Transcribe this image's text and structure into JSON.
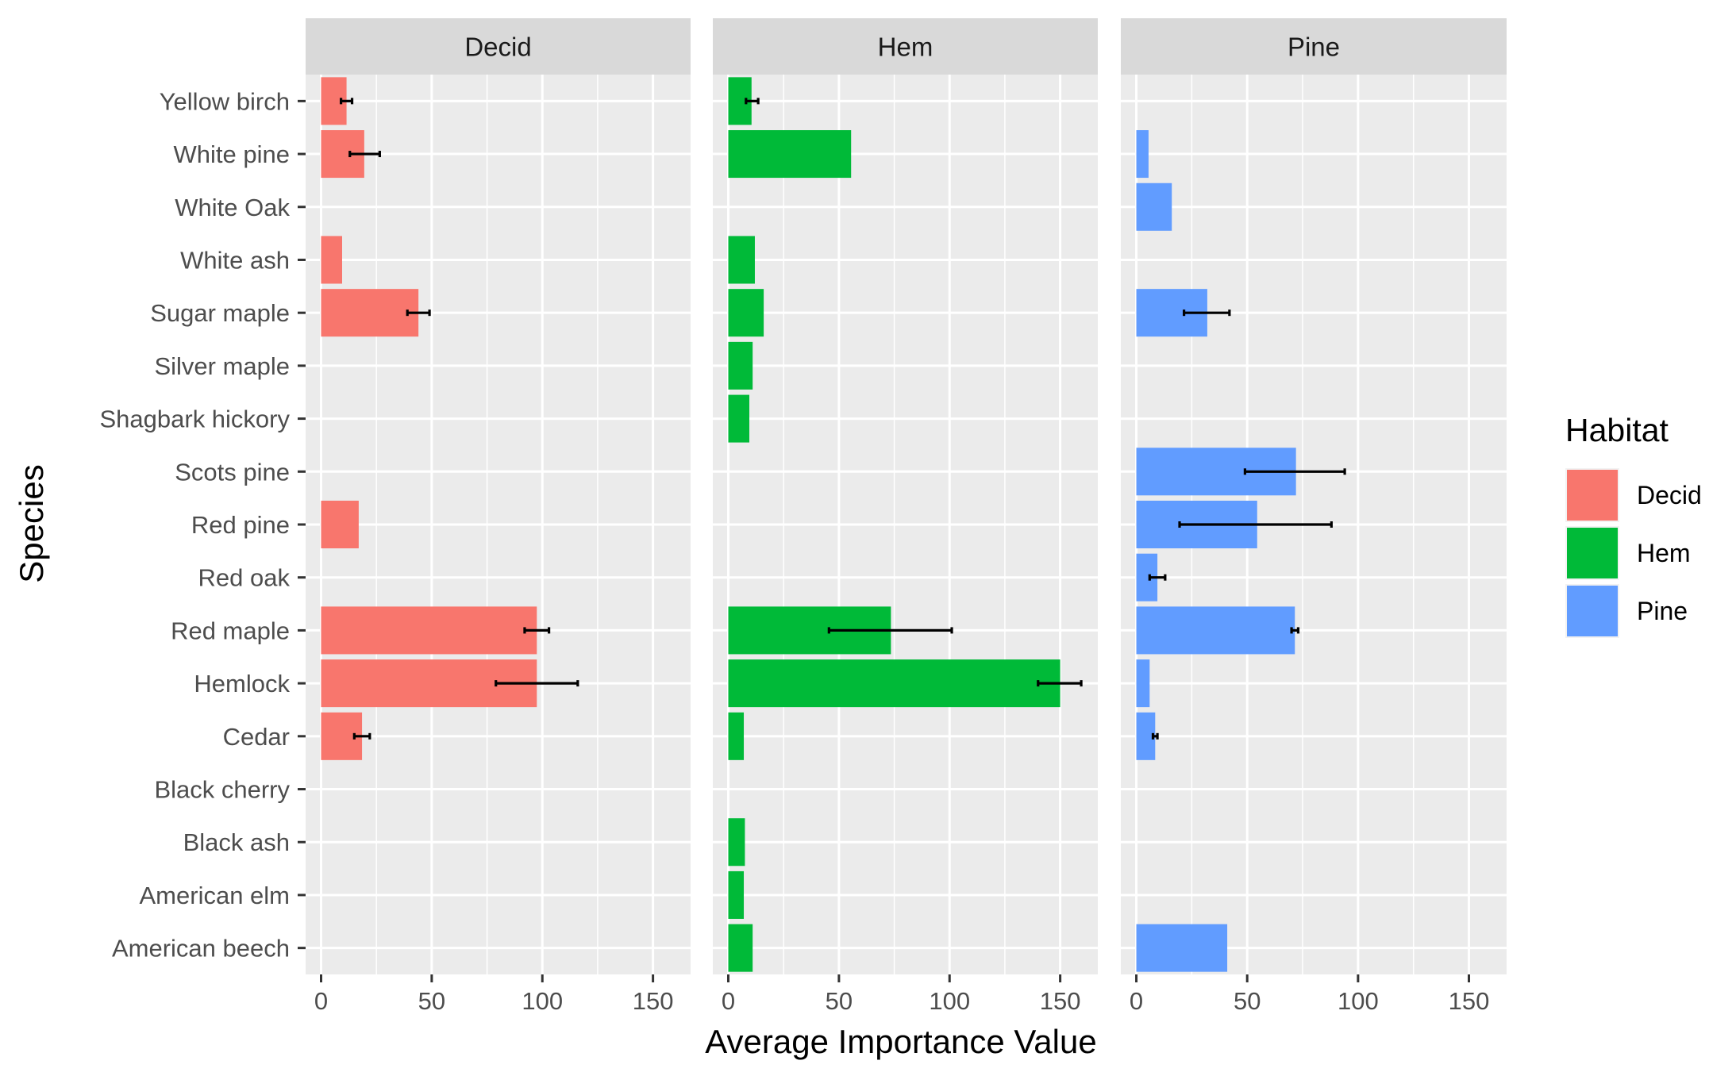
{
  "chart_data": {
    "type": "bar",
    "orientation": "horizontal",
    "facet_by": "Habitat",
    "xlabel": "Average Importance Value",
    "ylabel": "Species",
    "xlim": [
      -7,
      167
    ],
    "x_ticks": [
      0,
      50,
      100,
      150
    ],
    "grid": true,
    "legend": {
      "title": "Habitat",
      "placement": "right",
      "items": [
        {
          "name": "Decid",
          "color": "#F8766D"
        },
        {
          "name": "Hem",
          "color": "#00BA38"
        },
        {
          "name": "Pine",
          "color": "#619CFF"
        }
      ]
    },
    "categories": [
      "American beech",
      "American elm",
      "Black ash",
      "Black cherry",
      "Cedar",
      "Hemlock",
      "Red maple",
      "Red oak",
      "Red pine",
      "Scots pine",
      "Shagbark hickory",
      "Silver maple",
      "Sugar maple",
      "White ash",
      "White Oak",
      "White pine",
      "Yellow birch"
    ],
    "series": [
      {
        "name": "Decid",
        "color": "#F8766D",
        "values": [
          null,
          null,
          null,
          null,
          18.5,
          97.5,
          97.5,
          null,
          17,
          null,
          null,
          null,
          44,
          9.5,
          null,
          19.5,
          11.5
        ],
        "error_low": [
          null,
          null,
          null,
          null,
          15,
          79,
          92,
          null,
          null,
          null,
          null,
          null,
          39,
          null,
          null,
          13,
          9
        ],
        "error_high": [
          null,
          null,
          null,
          null,
          22,
          116,
          103,
          null,
          null,
          null,
          null,
          null,
          49,
          null,
          null,
          26.5,
          14
        ]
      },
      {
        "name": "Hem",
        "color": "#00BA38",
        "values": [
          11,
          7,
          7.5,
          null,
          7,
          150,
          73.5,
          null,
          null,
          null,
          9.5,
          11,
          16,
          12,
          null,
          55.5,
          10.5
        ],
        "error_low": [
          null,
          null,
          null,
          null,
          null,
          140,
          45.5,
          null,
          null,
          null,
          null,
          null,
          null,
          null,
          null,
          null,
          8
        ],
        "error_high": [
          null,
          null,
          null,
          null,
          null,
          159.5,
          101,
          null,
          null,
          null,
          null,
          null,
          null,
          null,
          null,
          null,
          13.5
        ]
      },
      {
        "name": "Pine",
        "color": "#619CFF",
        "values": [
          41,
          null,
          null,
          null,
          8.5,
          6,
          71.5,
          9.5,
          54.5,
          72,
          null,
          null,
          32,
          null,
          16,
          5.5,
          null
        ],
        "error_low": [
          null,
          null,
          null,
          null,
          7.5,
          null,
          70,
          6,
          19.5,
          49,
          null,
          null,
          21.5,
          null,
          null,
          null,
          null
        ],
        "error_high": [
          null,
          null,
          null,
          null,
          9.5,
          null,
          73,
          13,
          88,
          94,
          null,
          null,
          42,
          null,
          null,
          null,
          null
        ]
      }
    ]
  }
}
